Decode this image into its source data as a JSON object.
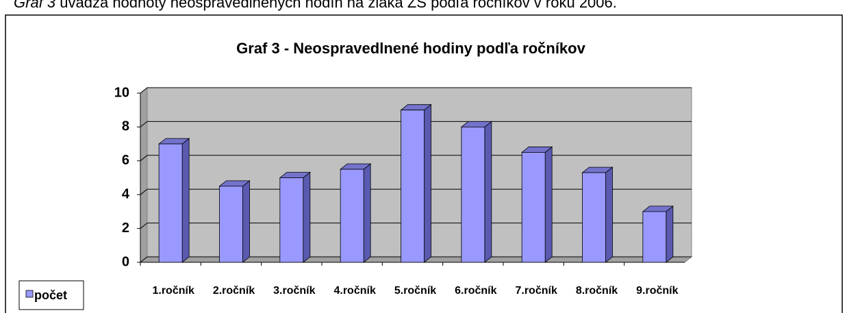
{
  "caption": {
    "prefix": "Graf 3",
    "text": "uvádza hodnoty neospravedlnených hodín na žiaka ZŠ podľa ročníkov v roku 2006."
  },
  "chart_data": {
    "type": "bar3d",
    "title": "Graf  3 - Neospravedlnené hodiny podľa ročníkov",
    "categories": [
      "1.ročník",
      "2.ročník",
      "3.ročník",
      "4.ročník",
      "5.ročník",
      "6.ročník",
      "7.ročník",
      "8.ročník",
      "9.ročník"
    ],
    "series": [
      {
        "name": "počet",
        "color": "#9999ff",
        "values": [
          7,
          4.5,
          5,
          5.5,
          9,
          8,
          6.5,
          5.3,
          3
        ]
      }
    ],
    "ylim": [
      0,
      10
    ],
    "yticks": [
      0,
      2,
      4,
      6,
      8,
      10
    ],
    "grid": true,
    "legend": "bottom-left"
  }
}
